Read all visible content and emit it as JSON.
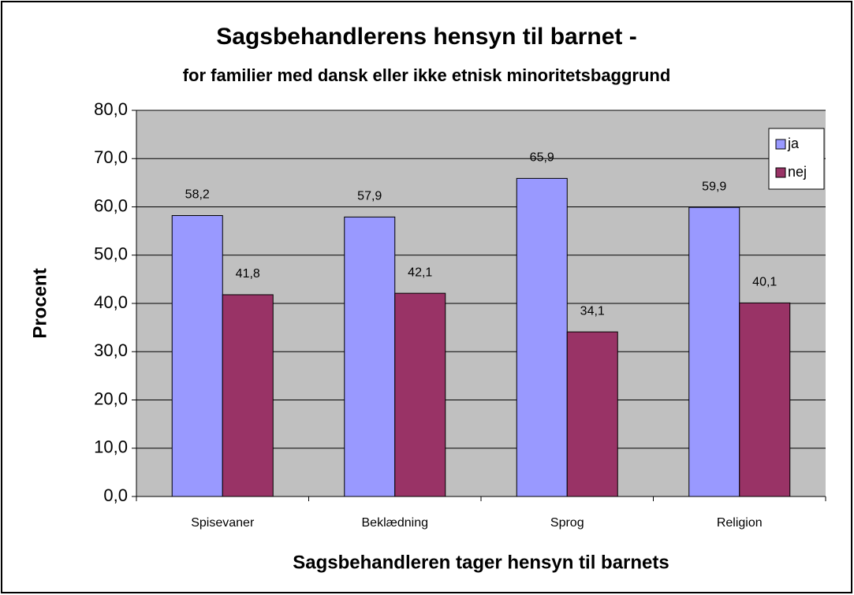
{
  "chart_data": {
    "type": "bar",
    "title": "Sagsbehandlerens hensyn til barnet -",
    "subtitle": "for familier med dansk eller ikke etnisk minoritetsbaggrund",
    "x_label": "Sagsbehandleren tager hensyn til barnets",
    "y_label": "Procent",
    "categories": [
      "Spisevaner",
      "Beklædning",
      "Sprog",
      "Religion"
    ],
    "series": [
      {
        "name": "ja",
        "color": "#9999ff",
        "values": [
          58.2,
          57.9,
          65.9,
          59.9
        ],
        "value_labels": [
          "58,2",
          "57,9",
          "65,9",
          "59,9"
        ]
      },
      {
        "name": "nej",
        "color": "#993366",
        "values": [
          41.8,
          42.1,
          34.1,
          40.1
        ],
        "value_labels": [
          "41,8",
          "42,1",
          "34,1",
          "40,1"
        ]
      }
    ],
    "ylim": [
      0,
      80
    ],
    "yticks": [
      {
        "value": 0,
        "label": "0,0"
      },
      {
        "value": 10,
        "label": "10,0"
      },
      {
        "value": 20,
        "label": "20,0"
      },
      {
        "value": 30,
        "label": "30,0"
      },
      {
        "value": 40,
        "label": "40,0"
      },
      {
        "value": 50,
        "label": "50,0"
      },
      {
        "value": 60,
        "label": "60,0"
      },
      {
        "value": 70,
        "label": "70,0"
      },
      {
        "value": 80,
        "label": "80,0"
      }
    ],
    "grid": true,
    "legend": "upper right"
  }
}
